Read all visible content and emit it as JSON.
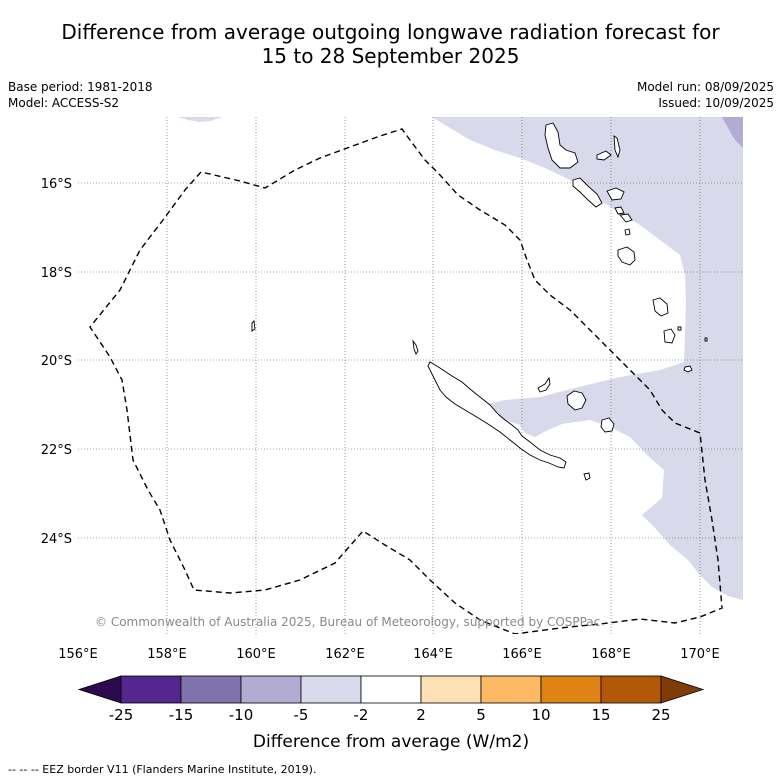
{
  "title_line1": "Difference from average outgoing longwave radiation forecast for",
  "title_line2": "15 to 28 September 2025",
  "base_period": "Base period: 1981-2018",
  "model": "Model: ACCESS-S2",
  "model_run": "Model run: 08/09/2025",
  "issued": "Issued: 10/09/2025",
  "lat_labels": [
    "16°S",
    "18°S",
    "20°S",
    "22°S",
    "24°S"
  ],
  "lon_labels": [
    "156°E",
    "158°E",
    "160°E",
    "162°E",
    "164°E",
    "166°E",
    "168°E",
    "170°E"
  ],
  "copyright": "© Commonwealth of Australia 2025, Bureau of Meteorology, supported by COSPPac",
  "colorbar": {
    "title": "Difference from average (W/m2)",
    "tick_labels": [
      "-25",
      "-15",
      "-10",
      "-5",
      "-2",
      "2",
      "5",
      "10",
      "15",
      "25"
    ],
    "bins": [
      {
        "range": "< -25",
        "color": "#2d0a4e"
      },
      {
        "range": "-25 to -15",
        "color": "#54278f"
      },
      {
        "range": "-15 to -10",
        "color": "#8073ac"
      },
      {
        "range": "-10 to -5",
        "color": "#b2abd2"
      },
      {
        "range": "-5 to -2",
        "color": "#d8daeb"
      },
      {
        "range": "-2 to 2",
        "color": "#ffffff"
      },
      {
        "range": "2 to 5",
        "color": "#fee0b6"
      },
      {
        "range": "5 to 10",
        "color": "#fdb863"
      },
      {
        "range": "10 to 15",
        "color": "#e08214"
      },
      {
        "range": "15 to 25",
        "color": "#b35806"
      },
      {
        "range": "> 25",
        "color": "#7f3b08"
      }
    ]
  },
  "footnote": "-- -- -- EEZ border V11 (Flanders Marine Institute, 2019).",
  "map_extent": {
    "lon_min": 156,
    "lon_max": 171,
    "lat_min": -26,
    "lat_max": -14.5
  },
  "anomaly_region_colors": {
    "slight_negative": "#d8daeb",
    "moderate_negative": "#b2abd2"
  }
}
